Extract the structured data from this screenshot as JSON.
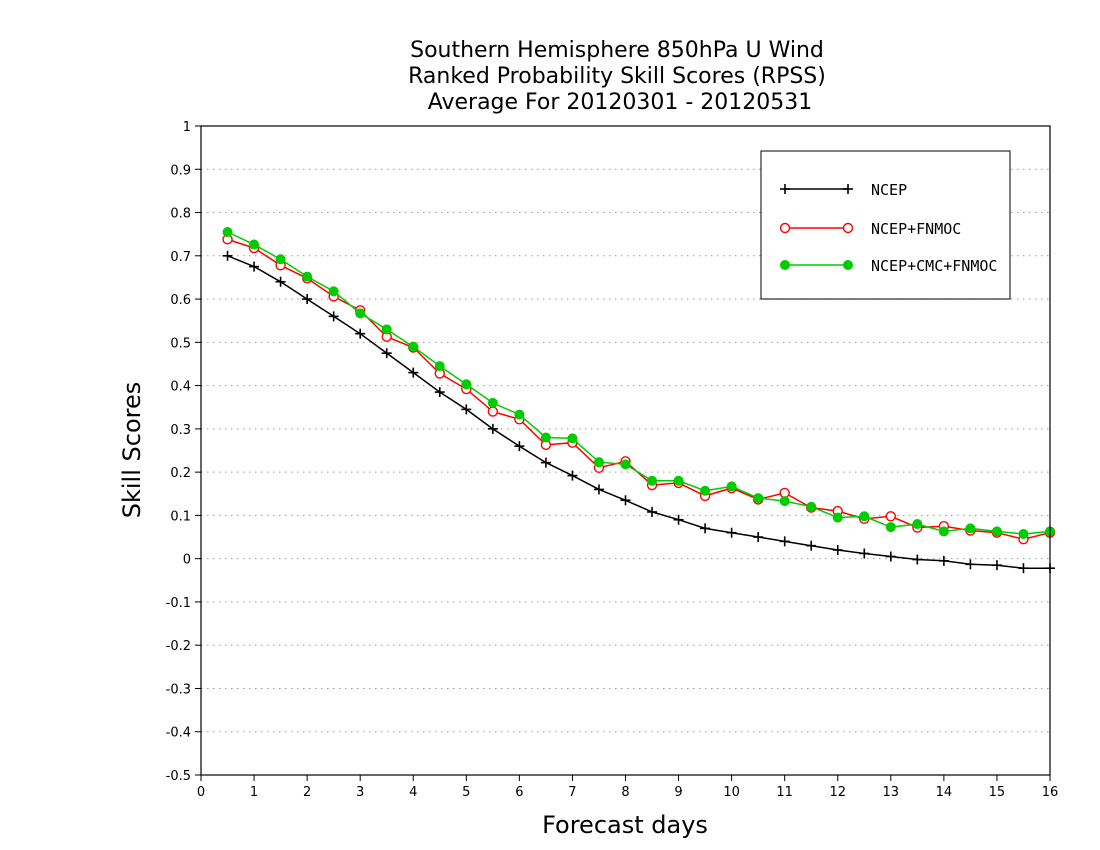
{
  "chart_data": {
    "type": "line",
    "title_lines": [
      "Southern Hemisphere 850hPa U Wind",
      "Ranked Probability Skill Scores (RPSS)",
      "Average For 20120301 - 20120531"
    ],
    "xlabel": "Forecast days",
    "ylabel": "Skill Scores",
    "xlim": [
      0,
      16
    ],
    "ylim": [
      -0.5,
      1
    ],
    "xticks": [
      "0",
      "1",
      "2",
      "3",
      "4",
      "5",
      "6",
      "7",
      "8",
      "9",
      "10",
      "11",
      "12",
      "13",
      "14",
      "15",
      "16"
    ],
    "yticks": [
      "1",
      "0.9",
      "0.8",
      "0.7",
      "0.6",
      "0.5",
      "0.4",
      "0.3",
      "0.2",
      "0.1",
      "0",
      "-0.1",
      "-0.2",
      "-0.3",
      "-0.4",
      "-0.5"
    ],
    "grid": "horizontal dotted",
    "legend_position": "top-right",
    "x": [
      0.5,
      1,
      1.5,
      2,
      2.5,
      3,
      3.5,
      4,
      4.5,
      5,
      5.5,
      6,
      6.5,
      7,
      7.5,
      8,
      8.5,
      9,
      9.5,
      10,
      10.5,
      11,
      11.5,
      12,
      12.5,
      13,
      13.5,
      14,
      14.5,
      15,
      15.5,
      16
    ],
    "series": [
      {
        "name": "NCEP",
        "color": "#000000",
        "marker": "plus",
        "values": [
          0.7,
          0.675,
          0.64,
          0.6,
          0.56,
          0.52,
          0.475,
          0.43,
          0.385,
          0.345,
          0.3,
          0.26,
          0.222,
          0.192,
          0.16,
          0.135,
          0.108,
          0.09,
          0.07,
          0.06,
          0.05,
          0.04,
          0.03,
          0.02,
          0.012,
          0.005,
          -0.002,
          -0.005,
          -0.013,
          -0.015,
          -0.022,
          -0.022
        ]
      },
      {
        "name": "NCEP+FNMOC",
        "color": "#ff0000",
        "marker": "open-circle",
        "values": [
          0.738,
          0.718,
          0.678,
          0.648,
          0.606,
          0.574,
          0.513,
          0.488,
          0.428,
          0.392,
          0.34,
          0.322,
          0.263,
          0.268,
          0.21,
          0.225,
          0.17,
          0.175,
          0.145,
          0.163,
          0.137,
          0.152,
          0.118,
          0.11,
          0.092,
          0.098,
          0.072,
          0.075,
          0.065,
          0.06,
          0.045,
          0.06
        ]
      },
      {
        "name": "NCEP+CMC+FNMOC",
        "color": "#00cc00",
        "marker": "filled-circle",
        "values": [
          0.755,
          0.726,
          0.692,
          0.652,
          0.618,
          0.567,
          0.53,
          0.49,
          0.445,
          0.403,
          0.36,
          0.333,
          0.28,
          0.278,
          0.223,
          0.218,
          0.18,
          0.18,
          0.157,
          0.167,
          0.14,
          0.133,
          0.12,
          0.095,
          0.098,
          0.073,
          0.08,
          0.063,
          0.07,
          0.063,
          0.057,
          0.063
        ]
      }
    ]
  }
}
